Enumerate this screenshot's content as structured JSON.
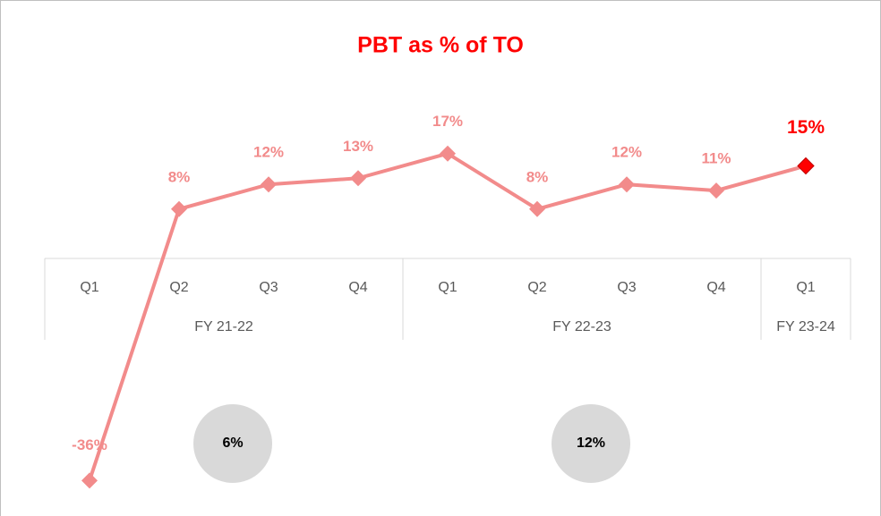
{
  "chart_data": {
    "type": "line",
    "title": "PBT as % of TO",
    "groups": [
      {
        "label": "FY 21-22",
        "categories": [
          "Q1",
          "Q2",
          "Q3",
          "Q4"
        ],
        "average": 6,
        "average_label": "6%"
      },
      {
        "label": "FY 22-23",
        "categories": [
          "Q1",
          "Q2",
          "Q3",
          "Q4"
        ],
        "average": 12,
        "average_label": "12%"
      },
      {
        "label": "FY 23-24",
        "categories": [
          "Q1"
        ]
      }
    ],
    "series": [
      {
        "name": "PBT as % of TO",
        "color": "#f28b8b",
        "marker_colors": [
          "#f28b8b",
          "#f28b8b",
          "#f28b8b",
          "#f28b8b",
          "#f28b8b",
          "#f28b8b",
          "#f28b8b",
          "#f28b8b",
          "#ff0000"
        ],
        "values": [
          -36,
          8,
          12,
          13,
          17,
          8,
          12,
          11,
          15
        ],
        "value_labels": [
          "-36%",
          "8%",
          "12%",
          "13%",
          "17%",
          "8%",
          "12%",
          "11%",
          "15%"
        ]
      }
    ],
    "ylim": [
      -40,
      20
    ]
  }
}
